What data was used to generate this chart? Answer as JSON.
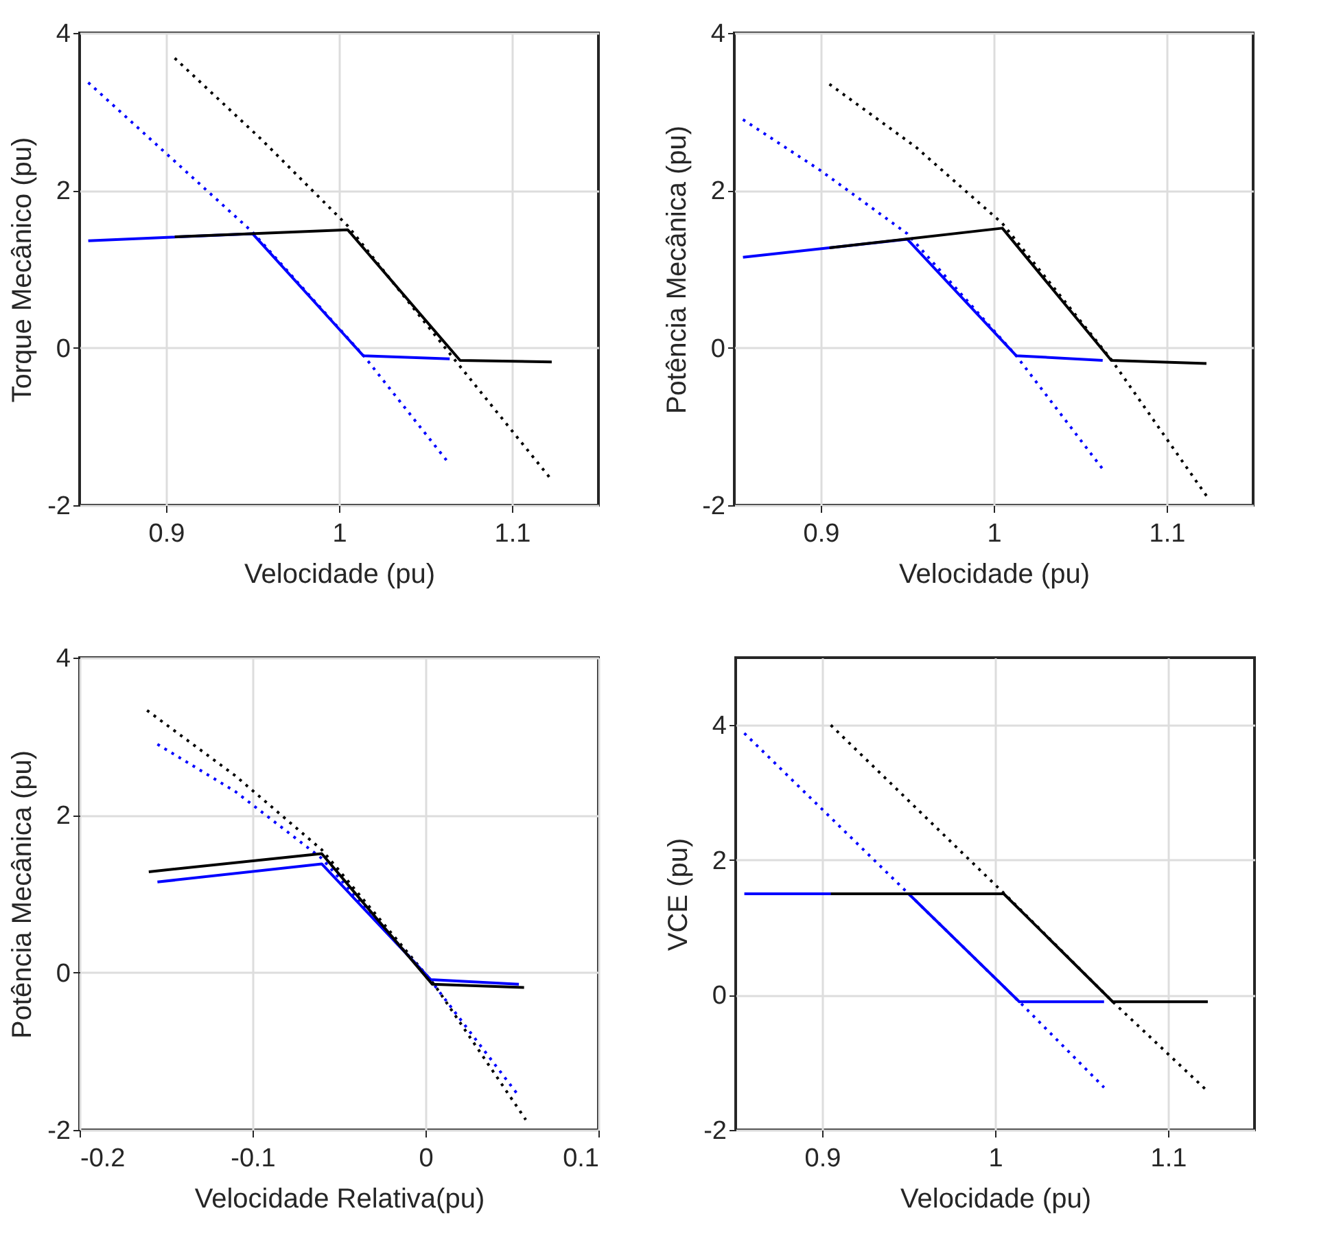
{
  "chart_data": [
    {
      "type": "line",
      "xlabel": "Velocidade (pu)",
      "ylabel": "Torque Mecânico (pu)",
      "xlim": [
        0.85,
        1.15
      ],
      "xticks": [
        0.9,
        1,
        1.1
      ],
      "ylim": [
        -2,
        4
      ],
      "yticks": [
        -2,
        0,
        2,
        4
      ],
      "grid": true,
      "series": [
        {
          "color": "#0000ff",
          "line_style": "dotted",
          "x": [
            0.855,
            0.95,
            1.015,
            1.064
          ],
          "values": [
            3.37,
            1.47,
            -0.12,
            -1.48
          ]
        },
        {
          "color": "#000000",
          "line_style": "dotted",
          "x": [
            0.905,
            0.955,
            1.005,
            1.065,
            1.123
          ],
          "values": [
            3.68,
            2.65,
            1.55,
            -0.1,
            -1.68
          ]
        },
        {
          "color": "#0000ff",
          "line_style": "solid",
          "x": [
            0.855,
            0.95,
            1.014,
            1.064
          ],
          "values": [
            1.36,
            1.45,
            -0.1,
            -0.14
          ]
        },
        {
          "color": "#000000",
          "line_style": "solid",
          "x": [
            0.905,
            1.005,
            1.07,
            1.123
          ],
          "values": [
            1.41,
            1.5,
            -0.16,
            -0.18
          ]
        }
      ]
    },
    {
      "type": "line",
      "xlabel": "Velocidade (pu)",
      "ylabel": "Potência Mecânica (pu)",
      "xlim": [
        0.85,
        1.15
      ],
      "xticks": [
        0.9,
        1,
        1.1
      ],
      "ylim": [
        -2,
        4
      ],
      "yticks": [
        -2,
        0,
        2,
        4
      ],
      "grid": true,
      "series": [
        {
          "color": "#0000ff",
          "line_style": "dotted",
          "x": [
            0.855,
            0.9,
            0.95,
            1.013,
            1.063
          ],
          "values": [
            2.9,
            2.25,
            1.45,
            -0.1,
            -1.54
          ]
        },
        {
          "color": "#000000",
          "line_style": "dotted",
          "x": [
            0.905,
            0.955,
            1.005,
            1.068,
            1.123
          ],
          "values": [
            3.35,
            2.55,
            1.58,
            -0.15,
            -1.88
          ]
        },
        {
          "color": "#0000ff",
          "line_style": "solid",
          "x": [
            0.855,
            0.95,
            1.013,
            1.063
          ],
          "values": [
            1.15,
            1.38,
            -0.1,
            -0.16
          ]
        },
        {
          "color": "#000000",
          "line_style": "solid",
          "x": [
            0.905,
            1.005,
            1.068,
            1.123
          ],
          "values": [
            1.27,
            1.52,
            -0.16,
            -0.2
          ]
        }
      ]
    },
    {
      "type": "line",
      "xlabel": "Velocidade Relativa(pu)",
      "ylabel": "Potência Mecânica (pu)",
      "xlim": [
        -0.2,
        0.1
      ],
      "xticks": [
        -0.2,
        -0.1,
        0,
        0.1
      ],
      "ylim": [
        -2,
        4
      ],
      "yticks": [
        -2,
        0,
        2,
        4
      ],
      "grid": true,
      "series": [
        {
          "color": "#0000ff",
          "line_style": "dotted",
          "x": [
            -0.155,
            -0.11,
            -0.06,
            0.003,
            0.053
          ],
          "values": [
            2.9,
            2.3,
            1.45,
            -0.1,
            -1.54
          ]
        },
        {
          "color": "#000000",
          "line_style": "dotted",
          "x": [
            -0.161,
            -0.11,
            -0.06,
            0.005,
            0.058
          ],
          "values": [
            3.33,
            2.5,
            1.56,
            -0.15,
            -1.87
          ]
        },
        {
          "color": "#0000ff",
          "line_style": "solid",
          "x": [
            -0.155,
            -0.06,
            0.003,
            0.054
          ],
          "values": [
            1.15,
            1.38,
            -0.09,
            -0.15
          ]
        },
        {
          "color": "#000000",
          "line_style": "solid",
          "x": [
            -0.16,
            -0.06,
            0.004,
            0.057
          ],
          "values": [
            1.28,
            1.51,
            -0.15,
            -0.19
          ]
        }
      ]
    },
    {
      "type": "line",
      "xlabel": "Velocidade (pu)",
      "ylabel": "VCE (pu)",
      "xlim": [
        0.85,
        1.15
      ],
      "xticks": [
        0.9,
        1,
        1.1
      ],
      "ylim": [
        -2,
        5
      ],
      "yticks": [
        -2,
        0,
        2,
        4
      ],
      "grid": true,
      "series": [
        {
          "color": "#0000ff",
          "line_style": "dotted",
          "x": [
            0.855,
            0.95,
            1.014,
            1.063
          ],
          "values": [
            3.88,
            1.5,
            -0.1,
            -1.37
          ]
        },
        {
          "color": "#000000",
          "line_style": "dotted",
          "x": [
            0.905,
            1.005,
            1.068,
            1.123
          ],
          "values": [
            4.0,
            1.51,
            -0.1,
            -1.43
          ]
        },
        {
          "color": "#0000ff",
          "line_style": "solid",
          "x": [
            0.855,
            0.95,
            1.014,
            1.063
          ],
          "values": [
            1.5,
            1.5,
            -0.1,
            -0.1
          ]
        },
        {
          "color": "#000000",
          "line_style": "solid",
          "x": [
            0.905,
            1.005,
            1.068,
            1.123
          ],
          "values": [
            1.5,
            1.5,
            -0.1,
            -0.1
          ]
        }
      ]
    }
  ]
}
